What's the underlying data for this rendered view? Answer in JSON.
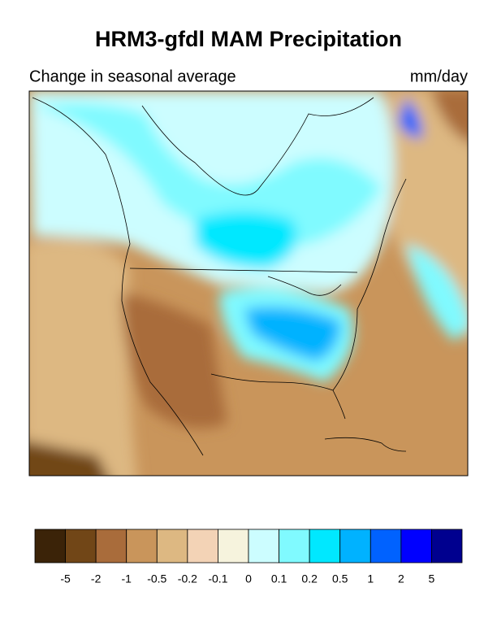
{
  "header": {
    "title": "HRM3-gfdl MAM Precipitation",
    "subtitle": "Change in seasonal average",
    "units": "mm/day"
  },
  "colorbar": {
    "colors": [
      "#3b2308",
      "#714617",
      "#a96c3b",
      "#c9955b",
      "#ddb882",
      "#f3d3b6",
      "#f6f3dd",
      "#ccfdff",
      "#80faff",
      "#00e8ff",
      "#00b2ff",
      "#0062ff",
      "#0000ff",
      "#00008f"
    ],
    "labels": [
      "-5",
      "-2",
      "-1",
      "-0.5",
      "-0.2",
      "-0.1",
      "0",
      "0.1",
      "0.2",
      "0.5",
      "1",
      "2",
      "5"
    ]
  }
}
